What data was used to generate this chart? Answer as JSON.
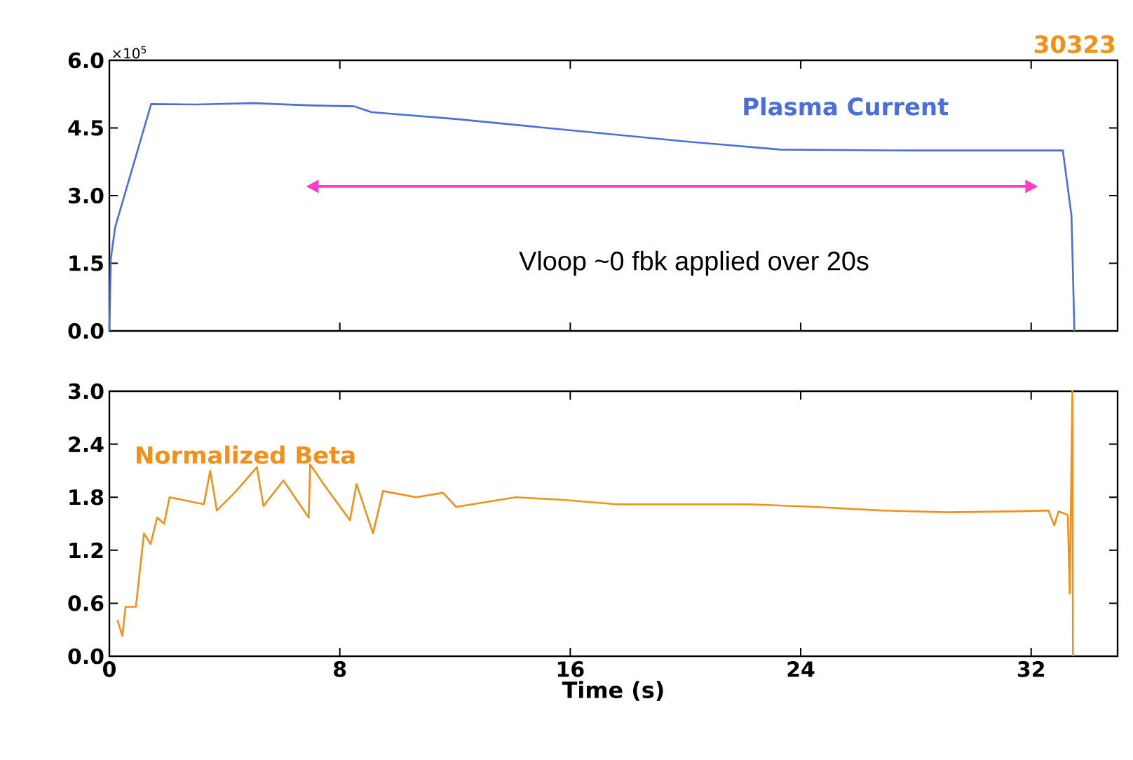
{
  "chart_data": [
    {
      "type": "line",
      "annotations": [
        "×10$^{5}$",
        "30323",
        "Vloop ~0 fbk applied over 20s"
      ],
      "series": [
        {
          "name": "Plasma Current",
          "color": "#4a6fdc",
          "x": [
            0,
            0.05,
            0.2,
            1.45,
            3,
            5,
            7,
            8.5,
            9.1,
            12,
            16,
            20,
            23.3,
            28,
            33.1,
            33.4,
            33.5
          ],
          "values": [
            0,
            1.6,
            2.3,
            5.03,
            5.02,
            5.05,
            5.0,
            4.98,
            4.85,
            4.7,
            4.45,
            4.2,
            4.02,
            4.0,
            4.0,
            2.55,
            0
          ]
        }
      ],
      "xlim": [
        0,
        35
      ],
      "xticks": [
        0,
        8,
        16,
        24,
        32
      ],
      "ylim": [
        0,
        6
      ],
      "yticks": [
        {
          "value": 0,
          "label": "0.0"
        },
        {
          "value": 1.5,
          "label": "1.5"
        },
        {
          "value": 3,
          "label": "3.0"
        },
        {
          "value": 4.5,
          "label": "4.5"
        },
        {
          "value": 6,
          "label": "6.0"
        }
      ],
      "tick_labels": "y"
    },
    {
      "type": "line",
      "xlabel": "Time (s)",
      "series": [
        {
          "name": "Normalized Beta",
          "color": "#f39019",
          "x": [
            0.28,
            0.45,
            0.56,
            0.92,
            1.2,
            1.43,
            1.66,
            1.9,
            2.09,
            3.28,
            3.5,
            3.73,
            4.4,
            5.12,
            5.35,
            6.04,
            6.92,
            6.97,
            7.43,
            8.35,
            8.58,
            9.15,
            9.5,
            10.65,
            11.58,
            12.04,
            14.1,
            15.76,
            17.6,
            19.9,
            22.2,
            24.5,
            26.8,
            29.1,
            31.4,
            32.6,
            32.8,
            32.95,
            33.27,
            33.34,
            33.43,
            33.45
          ],
          "values": [
            0.41,
            0.23,
            0.56,
            0.56,
            1.39,
            1.27,
            1.57,
            1.5,
            1.8,
            1.72,
            2.1,
            1.65,
            1.87,
            2.14,
            1.7,
            1.99,
            1.57,
            2.17,
            1.95,
            1.54,
            1.95,
            1.39,
            1.87,
            1.8,
            1.85,
            1.69,
            1.8,
            1.77,
            1.72,
            1.72,
            1.72,
            1.69,
            1.65,
            1.63,
            1.64,
            1.65,
            1.48,
            1.64,
            1.6,
            0.71,
            3.0,
            0.0
          ]
        }
      ],
      "xlim": [
        0,
        35
      ],
      "xticks": [
        0,
        8,
        16,
        24,
        32
      ],
      "ylim": [
        0,
        3
      ],
      "yticks": [
        {
          "value": 0,
          "label": "0.0"
        },
        {
          "value": 0.6,
          "label": "0.6"
        },
        {
          "value": 1.2,
          "label": "1.2"
        },
        {
          "value": 1.8,
          "label": "1.8"
        },
        {
          "value": 2.4,
          "label": "2.4"
        },
        {
          "value": 3,
          "label": "3.0"
        }
      ]
    }
  ]
}
